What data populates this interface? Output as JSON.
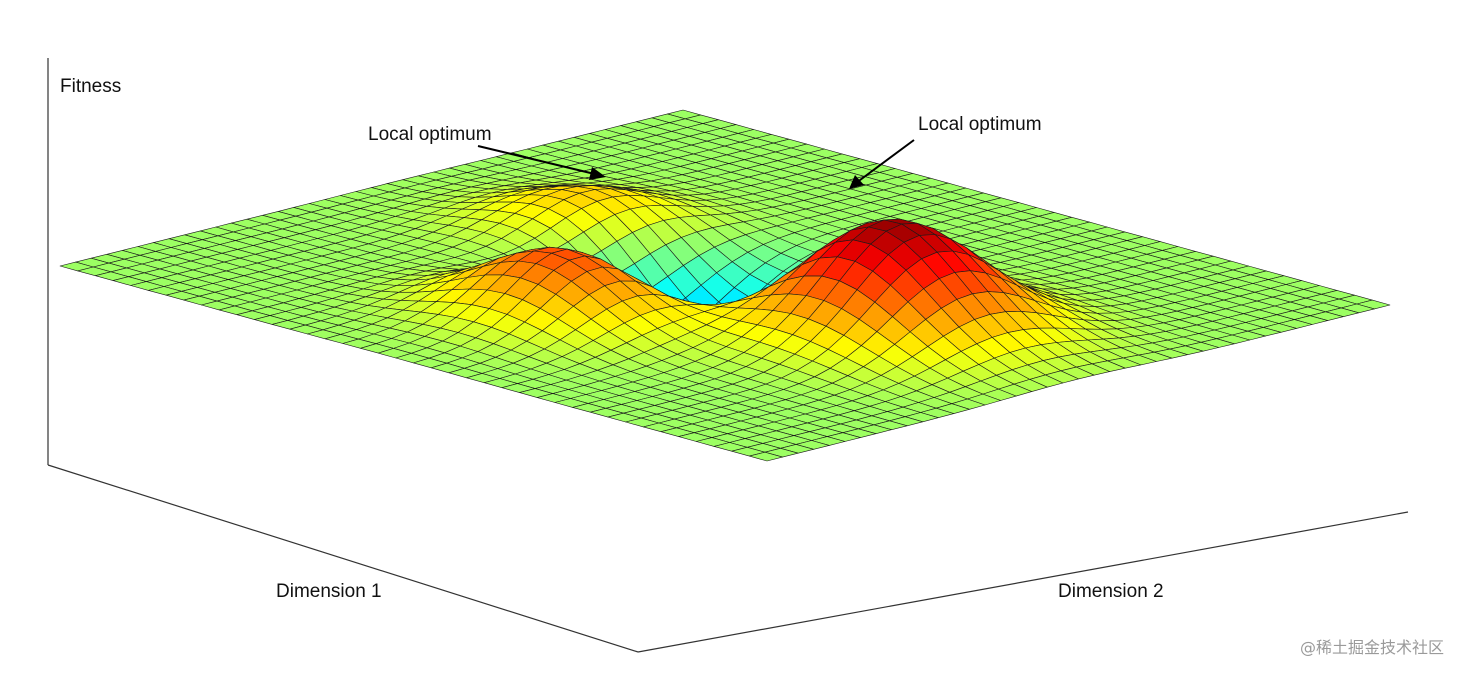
{
  "chart_data": {
    "type": "surface",
    "title": "",
    "zlabel": "Fitness",
    "xlabel": "Dimension 1",
    "ylabel": "Dimension 2",
    "grid_size": 41,
    "colormap": "jet",
    "surface_function": "peaks-like sum of gaussian bumps",
    "features": {
      "global_maximum": {
        "x": 0.0,
        "y": 1.4,
        "height": 8.0
      },
      "local_optima": [
        {
          "x": 1.3,
          "y": -0.15,
          "height": 5.5,
          "label": "Local optimum"
        },
        {
          "x": -0.3,
          "y": -1.35,
          "height": 3.2,
          "label": "Local optimum"
        }
      ],
      "global_minimum": {
        "x": 0.1,
        "y": -0.2,
        "height": -6.3
      }
    },
    "zlim": [
      -6.5,
      8.1
    ]
  },
  "annotations": [
    {
      "text": "Local optimum"
    },
    {
      "text": "Local optimum"
    }
  ],
  "watermark": "@稀土掘金技术社区"
}
